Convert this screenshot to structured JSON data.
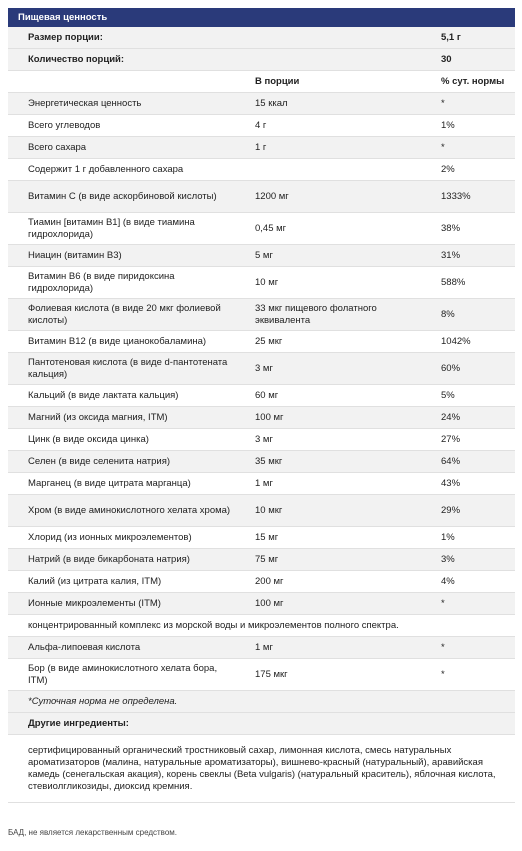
{
  "title": "Пищевая ценность",
  "serving_size": {
    "label": "Размер порции:",
    "value": "5,1 г"
  },
  "servings": {
    "label": "Количество порций:",
    "value": "30"
  },
  "columns": {
    "per_serving": "В порции",
    "dv": "% сут. нормы"
  },
  "rows": [
    {
      "name": "Энергетическая ценность",
      "amount": "15 ккал",
      "dv": "*"
    },
    {
      "name": "Всего углеводов",
      "amount": "4 г",
      "dv": "1%"
    },
    {
      "name": "Всего сахара",
      "amount": "1 г",
      "dv": "*"
    },
    {
      "name": "Содержит 1 г добавленного сахара",
      "amount": "",
      "dv": "2%"
    },
    {
      "name": "Витамин C (в виде аскорбиновой кислоты)",
      "amount": "1200 мг",
      "dv": "1333%"
    },
    {
      "name": "Тиамин [витамин B1] (в виде тиамина гидрохлорида)",
      "amount": "0,45 мг",
      "dv": "38%"
    },
    {
      "name": "Ниацин (витамин B3)",
      "amount": "5 мг",
      "dv": "31%"
    },
    {
      "name": "Витамин B6 (в виде пиридоксина гидрохлорида)",
      "amount": "10 мг",
      "dv": "588%"
    },
    {
      "name": "Фолиевая кислота (в виде 20 мкг фолиевой кислоты)",
      "amount": "33 мкг пищевого фолатного эквивалента",
      "dv": "8%"
    },
    {
      "name": "Витамин B12 (в виде цианокобаламина)",
      "amount": "25 мкг",
      "dv": "1042%"
    },
    {
      "name": "Пантотеновая кислота (в виде d-пантотената кальция)",
      "amount": "3 мг",
      "dv": "60%"
    },
    {
      "name": "Кальций (в виде лактата кальция)",
      "amount": "60 мг",
      "dv": "5%"
    },
    {
      "name": "Магний (из оксида магния, ITM)",
      "amount": "100 мг",
      "dv": "24%"
    },
    {
      "name": "Цинк (в виде оксида цинка)",
      "amount": "3 мг",
      "dv": "27%"
    },
    {
      "name": "Селен (в виде селенита натрия)",
      "amount": "35 мкг",
      "dv": "64%"
    },
    {
      "name": "Марганец (в виде цитрата марганца)",
      "amount": "1 мг",
      "dv": "43%"
    },
    {
      "name": "Хром (в виде аминокислотного хелата хрома)",
      "amount": "10 мкг",
      "dv": "29%"
    },
    {
      "name": "Хлорид (из ионных микроэлементов)",
      "amount": "15 мг",
      "dv": "1%"
    },
    {
      "name": "Натрий (в виде бикарбоната натрия)",
      "amount": "75 мг",
      "dv": "3%"
    },
    {
      "name": "Калий (из цитрата калия, ITM)",
      "amount": "200 мг",
      "dv": "4%"
    },
    {
      "name": "Ионные микроэлементы (ITM)",
      "amount": "100 мг",
      "dv": "*"
    }
  ],
  "itm_note": "концентрированный комплекс из морской воды и микроэлементов полного спектра.",
  "rows2": [
    {
      "name": "Альфа-липоевая кислота",
      "amount": "1 мг",
      "dv": "*"
    },
    {
      "name": "Бор (в виде аминокислотного хелата бора, ITM)",
      "amount": "175 мкг",
      "dv": "*"
    }
  ],
  "dv_note": "*Суточная норма не определена.",
  "other_label": "Другие ингредиенты:",
  "other_text": "сертифицированный органический тростниковый сахар, лимонная кислота, смесь натуральных ароматизаторов (малина, натуральные ароматизаторы), вишнево-красный (натуральный), аравийская камедь (сенегальская акация), корень свеклы (Beta vulgaris) (натуральный краситель), яблочная кислота, стевиолгликозиды, диоксид кремния.",
  "footer": "БАД, не является лекарственным средством."
}
